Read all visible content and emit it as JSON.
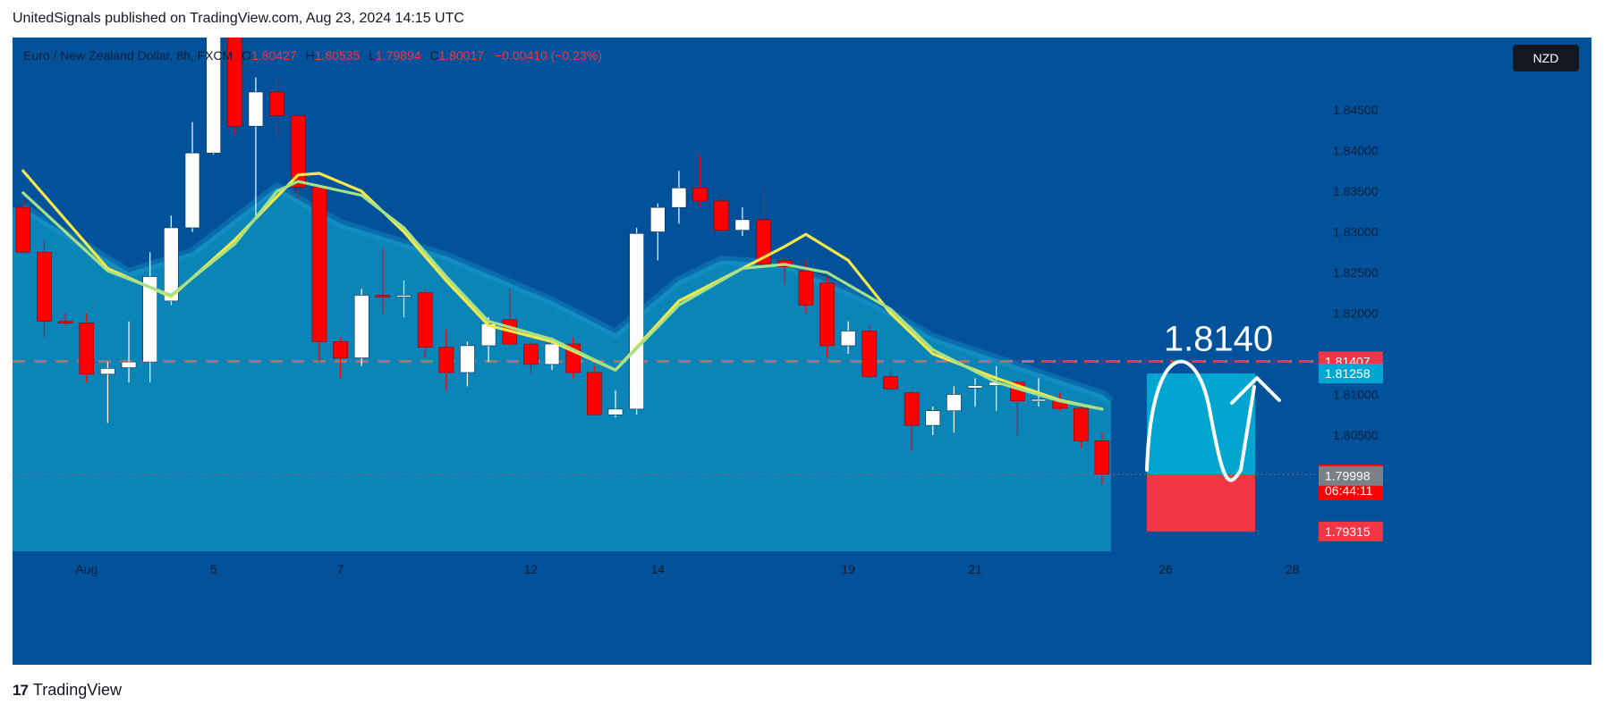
{
  "header": {
    "published_line": "UnitedSignals published on TradingView.com, Aug 23, 2024 14:15 UTC"
  },
  "legend": {
    "symbol": "Euro / New Zealand Dollar, 8h, FXCM",
    "o_label": "O",
    "o_value": "1.80427",
    "h_label": "H",
    "h_value": "1.80535",
    "l_label": "L",
    "l_value": "1.79894",
    "c_label": "C",
    "c_value": "1.80017",
    "change": "−0.00410 (−0.23%)"
  },
  "currency_badge": "NZD",
  "annotation": {
    "target_text": "1.8140"
  },
  "footer": {
    "brand": "TradingView",
    "logo_mark": "17"
  },
  "colors": {
    "background": "#01529a",
    "area_fill": "#0b84b8",
    "bull_candle": "#ffffff",
    "bear_candle": "#ff0000",
    "yellow_ma": "#f5e94a",
    "green_ma": "#a5e08a",
    "target_box": "#00a6cf",
    "stop_box": "#f23645",
    "dashed_line": "#f23645"
  },
  "chart_data": {
    "type": "candlestick",
    "y_axis": {
      "min": 1.7895,
      "max": 1.8545,
      "ticks": [
        "1.84500",
        "1.84000",
        "1.83500",
        "1.83000",
        "1.82500",
        "1.82000",
        "1.81000",
        "1.80500"
      ]
    },
    "x_axis": {
      "ticks": [
        {
          "label": "Aug",
          "index": 3
        },
        {
          "label": "5",
          "index": 9
        },
        {
          "label": "7",
          "index": 15
        },
        {
          "label": "12",
          "index": 24
        },
        {
          "label": "14",
          "index": 30
        },
        {
          "label": "19",
          "index": 39
        },
        {
          "label": "21",
          "index": 45
        },
        {
          "label": "26",
          "index": 54
        },
        {
          "label": "28",
          "index": 60
        }
      ],
      "total_slots": 63
    },
    "candles": [
      {
        "o": 1.833,
        "h": 1.834,
        "l": 1.828,
        "c": 1.8275
      },
      {
        "o": 1.8275,
        "h": 1.829,
        "l": 1.817,
        "c": 1.819
      },
      {
        "o": 1.819,
        "h": 1.82,
        "l": 1.8185,
        "c": 1.8188
      },
      {
        "o": 1.8188,
        "h": 1.82,
        "l": 1.8115,
        "c": 1.8125
      },
      {
        "o": 1.8125,
        "h": 1.814,
        "l": 1.8065,
        "c": 1.8132
      },
      {
        "o": 1.8133,
        "h": 1.819,
        "l": 1.8115,
        "c": 1.814
      },
      {
        "o": 1.814,
        "h": 1.8275,
        "l": 1.8115,
        "c": 1.8245
      },
      {
        "o": 1.8215,
        "h": 1.832,
        "l": 1.821,
        "c": 1.8305
      },
      {
        "o": 1.8305,
        "h": 1.8435,
        "l": 1.83,
        "c": 1.8397
      },
      {
        "o": 1.8397,
        "h": 1.855,
        "l": 1.8395,
        "c": 1.855
      },
      {
        "o": 1.855,
        "h": 1.855,
        "l": 1.842,
        "c": 1.843
      },
      {
        "o": 1.843,
        "h": 1.849,
        "l": 1.832,
        "c": 1.8472
      },
      {
        "o": 1.8472,
        "h": 1.849,
        "l": 1.8415,
        "c": 1.8443
      },
      {
        "o": 1.8443,
        "h": 1.8445,
        "l": 1.834,
        "c": 1.8355
      },
      {
        "o": 1.8355,
        "h": 1.8355,
        "l": 1.814,
        "c": 1.8165
      },
      {
        "o": 1.8165,
        "h": 1.817,
        "l": 1.812,
        "c": 1.8145
      },
      {
        "o": 1.8145,
        "h": 1.823,
        "l": 1.8135,
        "c": 1.8222
      },
      {
        "o": 1.8222,
        "h": 1.828,
        "l": 1.82,
        "c": 1.822
      },
      {
        "o": 1.822,
        "h": 1.824,
        "l": 1.8195,
        "c": 1.8222
      },
      {
        "o": 1.8225,
        "h": 1.823,
        "l": 1.8145,
        "c": 1.8158
      },
      {
        "o": 1.8158,
        "h": 1.818,
        "l": 1.8105,
        "c": 1.8127
      },
      {
        "o": 1.8127,
        "h": 1.8165,
        "l": 1.811,
        "c": 1.816
      },
      {
        "o": 1.816,
        "h": 1.8195,
        "l": 1.814,
        "c": 1.8187
      },
      {
        "o": 1.8192,
        "h": 1.823,
        "l": 1.816,
        "c": 1.8162
      },
      {
        "o": 1.8162,
        "h": 1.8165,
        "l": 1.8125,
        "c": 1.8137
      },
      {
        "o": 1.8137,
        "h": 1.817,
        "l": 1.813,
        "c": 1.8162
      },
      {
        "o": 1.8162,
        "h": 1.817,
        "l": 1.812,
        "c": 1.8127
      },
      {
        "o": 1.8127,
        "h": 1.8135,
        "l": 1.808,
        "c": 1.8075
      },
      {
        "o": 1.8075,
        "h": 1.8105,
        "l": 1.8072,
        "c": 1.8082
      },
      {
        "o": 1.8082,
        "h": 1.8305,
        "l": 1.8075,
        "c": 1.8298
      },
      {
        "o": 1.83,
        "h": 1.8335,
        "l": 1.8265,
        "c": 1.833
      },
      {
        "o": 1.833,
        "h": 1.8375,
        "l": 1.831,
        "c": 1.8354
      },
      {
        "o": 1.8354,
        "h": 1.8395,
        "l": 1.833,
        "c": 1.8338
      },
      {
        "o": 1.8338,
        "h": 1.834,
        "l": 1.83,
        "c": 1.8302
      },
      {
        "o": 1.8302,
        "h": 1.833,
        "l": 1.8295,
        "c": 1.8315
      },
      {
        "o": 1.8315,
        "h": 1.8355,
        "l": 1.8255,
        "c": 1.826
      },
      {
        "o": 1.8265,
        "h": 1.827,
        "l": 1.8235,
        "c": 1.8257
      },
      {
        "o": 1.8252,
        "h": 1.8265,
        "l": 1.82,
        "c": 1.821
      },
      {
        "o": 1.8237,
        "h": 1.8245,
        "l": 1.8145,
        "c": 1.816
      },
      {
        "o": 1.816,
        "h": 1.819,
        "l": 1.815,
        "c": 1.8178
      },
      {
        "o": 1.8178,
        "h": 1.8185,
        "l": 1.812,
        "c": 1.8122
      },
      {
        "o": 1.8122,
        "h": 1.813,
        "l": 1.8105,
        "c": 1.8107
      },
      {
        "o": 1.8102,
        "h": 1.8105,
        "l": 1.803,
        "c": 1.8062
      },
      {
        "o": 1.8062,
        "h": 1.8085,
        "l": 1.805,
        "c": 1.808
      },
      {
        "o": 1.808,
        "h": 1.811,
        "l": 1.8053,
        "c": 1.81
      },
      {
        "o": 1.8108,
        "h": 1.812,
        "l": 1.8085,
        "c": 1.8111
      },
      {
        "o": 1.8111,
        "h": 1.8135,
        "l": 1.808,
        "c": 1.8115
      },
      {
        "o": 1.8115,
        "h": 1.8117,
        "l": 1.805,
        "c": 1.8092
      },
      {
        "o": 1.8093,
        "h": 1.812,
        "l": 1.8085,
        "c": 1.8094
      },
      {
        "o": 1.8092,
        "h": 1.8102,
        "l": 1.808,
        "c": 1.8083
      },
      {
        "o": 1.8083,
        "h": 1.8085,
        "l": 1.8035,
        "c": 1.8043
      },
      {
        "o": 1.8043,
        "h": 1.8054,
        "l": 1.7989,
        "c": 1.8002
      }
    ],
    "moving_averages": [
      {
        "name": "",
        "color": "#f5e94a",
        "values": [
          {
            "i": 0,
            "v": 1.8375
          },
          {
            "i": 4,
            "v": 1.8255
          },
          {
            "i": 7,
            "v": 1.822
          },
          {
            "i": 10,
            "v": 1.829
          },
          {
            "i": 13,
            "v": 1.837
          },
          {
            "i": 14,
            "v": 1.8372
          },
          {
            "i": 16,
            "v": 1.835
          },
          {
            "i": 18,
            "v": 1.83
          },
          {
            "i": 20,
            "v": 1.824
          },
          {
            "i": 22,
            "v": 1.8185
          },
          {
            "i": 25,
            "v": 1.8165
          },
          {
            "i": 28,
            "v": 1.813
          },
          {
            "i": 31,
            "v": 1.8215
          },
          {
            "i": 34,
            "v": 1.8255
          },
          {
            "i": 36,
            "v": 1.8282
          },
          {
            "i": 37,
            "v": 1.8297
          },
          {
            "i": 39,
            "v": 1.8265
          },
          {
            "i": 41,
            "v": 1.82
          },
          {
            "i": 43,
            "v": 1.815
          },
          {
            "i": 46,
            "v": 1.812
          },
          {
            "i": 49,
            "v": 1.8093
          },
          {
            "i": 51,
            "v": 1.8082
          }
        ]
      },
      {
        "name": "",
        "color": "#a5e08a",
        "values": [
          {
            "i": 0,
            "v": 1.8348
          },
          {
            "i": 4,
            "v": 1.8252
          },
          {
            "i": 7,
            "v": 1.8222
          },
          {
            "i": 10,
            "v": 1.8285
          },
          {
            "i": 12,
            "v": 1.835
          },
          {
            "i": 13,
            "v": 1.8362
          },
          {
            "i": 16,
            "v": 1.8345
          },
          {
            "i": 18,
            "v": 1.8305
          },
          {
            "i": 20,
            "v": 1.8245
          },
          {
            "i": 22,
            "v": 1.819
          },
          {
            "i": 25,
            "v": 1.8168
          },
          {
            "i": 28,
            "v": 1.813
          },
          {
            "i": 31,
            "v": 1.821
          },
          {
            "i": 34,
            "v": 1.8255
          },
          {
            "i": 36,
            "v": 1.826
          },
          {
            "i": 38,
            "v": 1.825
          },
          {
            "i": 41,
            "v": 1.8205
          },
          {
            "i": 43,
            "v": 1.8155
          },
          {
            "i": 46,
            "v": 1.8115
          },
          {
            "i": 49,
            "v": 1.8092
          },
          {
            "i": 51,
            "v": 1.8082
          }
        ]
      }
    ],
    "envelope": [
      {
        "i": 0,
        "v": 1.833
      },
      {
        "i": 5,
        "v": 1.825
      },
      {
        "i": 8,
        "v": 1.8275
      },
      {
        "i": 12,
        "v": 1.8355
      },
      {
        "i": 15,
        "v": 1.831
      },
      {
        "i": 20,
        "v": 1.827
      },
      {
        "i": 25,
        "v": 1.8215
      },
      {
        "i": 28,
        "v": 1.8175
      },
      {
        "i": 31,
        "v": 1.824
      },
      {
        "i": 33,
        "v": 1.8265
      },
      {
        "i": 36,
        "v": 1.826
      },
      {
        "i": 40,
        "v": 1.8215
      },
      {
        "i": 43,
        "v": 1.817
      },
      {
        "i": 47,
        "v": 1.8135
      },
      {
        "i": 51,
        "v": 1.81
      }
    ],
    "horizontal_line": {
      "value": 1.81407,
      "style": "dashed"
    },
    "projection_box": {
      "start_index": 53,
      "end_index": 58,
      "target": 1.81258,
      "entry": 1.80017,
      "stop": 1.79315
    },
    "price_labels": [
      {
        "text": "1.81407",
        "value": 1.81407,
        "bg": "#f23645"
      },
      {
        "text": "1.81258",
        "value": 1.81258,
        "bg": "#00a6cf"
      },
      {
        "text": "1.80017",
        "value": 1.80017,
        "bg": "#ff0000",
        "sub": "06:44:11"
      },
      {
        "text": "1.79998",
        "value": 1.79998,
        "bg": "#7b7f87"
      },
      {
        "text": "1.79315",
        "value": 1.79315,
        "bg": "#f23645"
      }
    ]
  }
}
